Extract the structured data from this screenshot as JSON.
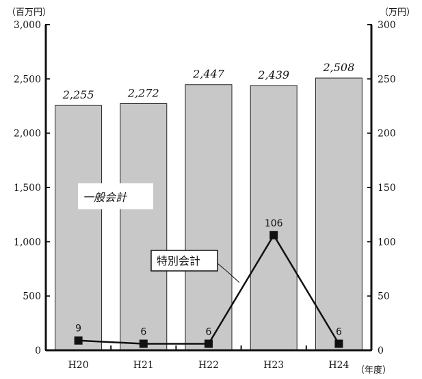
{
  "chart_data": {
    "type": "bar",
    "categories": [
      "H20",
      "H21",
      "H22",
      "H23",
      "H24"
    ],
    "series": [
      {
        "name": "一般会計",
        "type": "bar",
        "axis": "left",
        "values": [
          2255,
          2272,
          2447,
          2439,
          2508
        ],
        "labels": [
          "2,255",
          "2,272",
          "2,447",
          "2,439",
          "2,508"
        ],
        "color": "#c8c8c8"
      },
      {
        "name": "特別会計",
        "type": "line",
        "axis": "right",
        "values": [
          9,
          6,
          6,
          106,
          6
        ],
        "labels": [
          "9",
          "6",
          "6",
          "106",
          "6"
        ],
        "color": "#111111"
      }
    ],
    "y_left": {
      "unit": "（百万円）",
      "ylim": [
        0,
        3000
      ],
      "ticks": [
        0,
        500,
        1000,
        1500,
        2000,
        2500,
        3000
      ],
      "tick_labels": [
        "0",
        "500",
        "1,000",
        "1,500",
        "2,000",
        "2,500",
        "3,000"
      ]
    },
    "y_right": {
      "unit": "（万円）",
      "ylim": [
        0,
        300
      ],
      "ticks": [
        0,
        50,
        100,
        150,
        200,
        250,
        300
      ],
      "tick_labels": [
        "0",
        "50",
        "100",
        "150",
        "200",
        "250",
        "300"
      ]
    },
    "x_unit": "（年度）",
    "grid": false
  }
}
